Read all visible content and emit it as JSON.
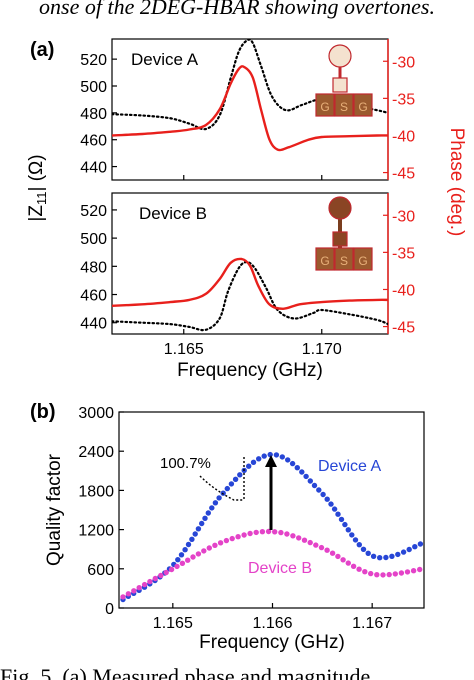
{
  "caption_top": "onse of the 2DEG-HBAR showing overtones.",
  "caption_bottom": "Fig. 5. (a) Measured phase and magnitude",
  "colors": {
    "red": "#e8201c",
    "black": "#000000",
    "blue": "#2746d6",
    "magenta": "#e443c8",
    "dark_red": "#c0282e",
    "pad_brown": "#9a5a2e",
    "pad_outline": "#c0282e"
  },
  "panel_a": {
    "label": "(a)",
    "y_left_label": "|Z11| (Ω)",
    "y_left_label_main": "|Z",
    "y_left_label_sub": "11",
    "y_left_label_tail": "| (Ω)",
    "y_right_label": "Phase (deg.)",
    "x_label": "Frequency (GHz)",
    "x_ticks": [
      "1.165",
      "1.170"
    ],
    "pad_letters": [
      "G",
      "S",
      "G"
    ],
    "top": {
      "device_label": "Device A",
      "y_left_ticks": [
        "520",
        "500",
        "480",
        "460",
        "440"
      ],
      "y_right_ticks": [
        "-30",
        "-35",
        "-40",
        "-45"
      ]
    },
    "bottom": {
      "device_label": "Device B",
      "y_left_ticks": [
        "520",
        "500",
        "480",
        "460",
        "440"
      ],
      "y_right_ticks": [
        "-30",
        "-35",
        "-40",
        "-45"
      ]
    }
  },
  "panel_b": {
    "label": "(b)",
    "y_label": "Quality factor",
    "x_label": "Frequency (GHz)",
    "y_ticks": [
      "0",
      "600",
      "1200",
      "1800",
      "2400",
      "3000"
    ],
    "x_ticks": [
      "1.165",
      "1.166",
      "1.167"
    ],
    "annotation": "100.7%",
    "legend_a": "Device A",
    "legend_b": "Device B"
  },
  "chart_data": [
    {
      "type": "line",
      "panel": "a-top",
      "xlabel": "Frequency (GHz)",
      "ylabel": "|Z11| (Ω)",
      "y2label": "Phase (deg.)",
      "xlim": [
        1.1624,
        1.1724
      ],
      "ylim": [
        430,
        535
      ],
      "y2lim": [
        -46,
        -27
      ],
      "series": [
        {
          "name": "|Z11|",
          "style": "dotted",
          "color": "#000000",
          "axis": "left",
          "x": [
            1.1624,
            1.1635,
            1.1645,
            1.1652,
            1.1658,
            1.1663,
            1.1667,
            1.167,
            1.1673,
            1.1675,
            1.1678,
            1.1682,
            1.1687,
            1.1693,
            1.17,
            1.171,
            1.172,
            1.1724
          ],
          "y": [
            479,
            478,
            476,
            472,
            468,
            478,
            506,
            526,
            534,
            532,
            515,
            492,
            482,
            486,
            490,
            486,
            482,
            480
          ]
        },
        {
          "name": "Phase",
          "style": "solid",
          "color": "#e8201c",
          "axis": "right",
          "x": [
            1.1624,
            1.1635,
            1.1645,
            1.1652,
            1.1658,
            1.1663,
            1.1667,
            1.167,
            1.1672,
            1.1675,
            1.1678,
            1.1681,
            1.1684,
            1.1688,
            1.1695,
            1.17,
            1.171,
            1.172,
            1.1724
          ],
          "y": [
            -40.0,
            -39.8,
            -39.5,
            -39.2,
            -38.6,
            -36.5,
            -33.0,
            -31.0,
            -30.8,
            -32.2,
            -36.5,
            -40.5,
            -41.9,
            -41.6,
            -40.6,
            -40.2,
            -40.1,
            -40.0,
            -40.0
          ]
        }
      ]
    },
    {
      "type": "line",
      "panel": "a-bottom",
      "xlabel": "Frequency (GHz)",
      "ylabel": "|Z11| (Ω)",
      "y2label": "Phase (deg.)",
      "xlim": [
        1.1624,
        1.1724
      ],
      "ylim": [
        432,
        532
      ],
      "y2lim": [
        -46,
        -27
      ],
      "series": [
        {
          "name": "|Z11|",
          "style": "dotted",
          "color": "#000000",
          "axis": "left",
          "x": [
            1.1624,
            1.1635,
            1.1645,
            1.1652,
            1.1658,
            1.1663,
            1.1666,
            1.167,
            1.1673,
            1.1676,
            1.168,
            1.1684,
            1.169,
            1.1697,
            1.17,
            1.171,
            1.172,
            1.1724
          ],
          "y": [
            441,
            440,
            439,
            437,
            435,
            443,
            462,
            479,
            483,
            478,
            464,
            449,
            443,
            447,
            449,
            446,
            442,
            439
          ]
        },
        {
          "name": "Phase",
          "style": "solid",
          "color": "#e8201c",
          "axis": "right",
          "x": [
            1.1624,
            1.1635,
            1.1645,
            1.1652,
            1.1658,
            1.1663,
            1.1667,
            1.1671,
            1.1674,
            1.1677,
            1.1681,
            1.1686,
            1.1692,
            1.17,
            1.171,
            1.172,
            1.1724
          ],
          "y": [
            -42.2,
            -42.0,
            -41.7,
            -41.4,
            -40.6,
            -38.6,
            -36.4,
            -35.9,
            -36.8,
            -39.5,
            -42.0,
            -42.6,
            -42.0,
            -41.7,
            -41.5,
            -41.4,
            -41.4
          ]
        }
      ]
    },
    {
      "type": "scatter",
      "panel": "b",
      "xlabel": "Frequency (GHz)",
      "ylabel": "Quality factor",
      "xlim": [
        1.16446,
        1.16752
      ],
      "ylim": [
        0,
        3000
      ],
      "series": [
        {
          "name": "Device A",
          "color": "#2746d6",
          "x": [
            1.1645,
            1.165,
            1.1655,
            1.166,
            1.1665,
            1.167,
            1.16752
          ],
          "y": [
            130,
            650,
            1750,
            2350,
            1750,
            800,
            1000
          ]
        },
        {
          "name": "Device B",
          "color": "#e443c8",
          "x": [
            1.1645,
            1.165,
            1.1655,
            1.166,
            1.1665,
            1.167,
            1.16752
          ],
          "y": [
            170,
            600,
            1010,
            1170,
            920,
            520,
            600
          ]
        }
      ]
    }
  ]
}
